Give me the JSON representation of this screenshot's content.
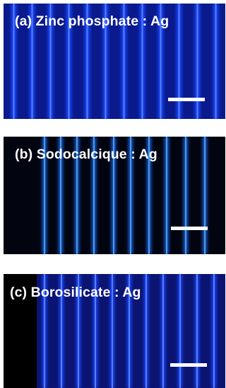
{
  "panels": [
    {
      "id": "a",
      "label": "(a) Zinc phosphate : Ag",
      "stripe_count": 12,
      "scale_bar": "white bar"
    },
    {
      "id": "b",
      "label": "(b) Sodocalcique : Ag",
      "stripe_count": 10,
      "scale_bar": "white bar"
    },
    {
      "id": "c",
      "label": "(c) Borosilicate : Ag",
      "stripe_count": 11,
      "scale_bar": "white bar"
    }
  ],
  "colors": {
    "background": "#000000",
    "stripe_glow": "#1a3cff",
    "stripe_core": "#7fb4ff",
    "fill_a": "#0a1a8c",
    "fill_b": "#020410",
    "fill_c": "#0b1470",
    "text": "#ffffff"
  }
}
